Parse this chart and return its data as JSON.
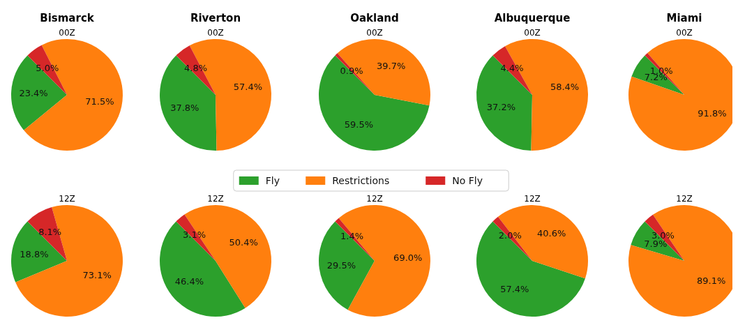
{
  "chart_data": [
    {
      "type": "pie",
      "title": "Bismarck",
      "subtitle": "00Z",
      "categories": [
        null,
        null,
        null
      ],
      "values": [
        23.4,
        71.5,
        5.0
      ],
      "value_labels": [
        "23.4%",
        "71.5%",
        "5.0%"
      ],
      "colors": [
        "#2ca02c",
        "#ff7f0e",
        "#d62728"
      ]
    },
    {
      "type": "pie",
      "title": "Riverton",
      "subtitle": "00Z",
      "categories": [
        null,
        null,
        null
      ],
      "values": [
        37.8,
        57.4,
        4.8
      ],
      "value_labels": [
        "37.8%",
        "57.4%",
        "4.8%"
      ],
      "colors": [
        "#2ca02c",
        "#ff7f0e",
        "#d62728"
      ]
    },
    {
      "type": "pie",
      "title": "Oakland",
      "subtitle": "00Z",
      "categories": [
        "Fly",
        "Restrictions",
        "No Fly"
      ],
      "values": [
        59.5,
        39.7,
        0.9
      ],
      "value_labels": [
        "59.5%",
        "39.7%",
        "0.9%"
      ],
      "colors": [
        "#2ca02c",
        "#ff7f0e",
        "#d62728"
      ],
      "legend": "bottom"
    },
    {
      "type": "pie",
      "title": "Albuquerque",
      "subtitle": "00Z",
      "categories": [
        null,
        null,
        null
      ],
      "values": [
        37.2,
        58.4,
        4.4
      ],
      "value_labels": [
        "37.2%",
        "58.4%",
        "4.4%"
      ],
      "colors": [
        "#2ca02c",
        "#ff7f0e",
        "#d62728"
      ]
    },
    {
      "type": "pie",
      "title": "Miami",
      "subtitle": "00Z",
      "categories": [
        null,
        null,
        null
      ],
      "values": [
        7.2,
        91.8,
        1.0
      ],
      "value_labels": [
        "7.2%",
        "91.8%",
        "1.0%"
      ],
      "colors": [
        "#2ca02c",
        "#ff7f0e",
        "#d62728"
      ]
    },
    {
      "type": "pie",
      "subtitle": "12Z",
      "categories": [
        null,
        null,
        null
      ],
      "values": [
        18.8,
        73.1,
        8.1
      ],
      "value_labels": [
        "18.8%",
        "73.1%",
        "8.1%"
      ],
      "colors": [
        "#2ca02c",
        "#ff7f0e",
        "#d62728"
      ]
    },
    {
      "type": "pie",
      "subtitle": "12Z",
      "categories": [
        null,
        null,
        null
      ],
      "values": [
        46.4,
        50.4,
        3.1
      ],
      "value_labels": [
        "46.4%",
        "50.4%",
        "3.1%"
      ],
      "colors": [
        "#2ca02c",
        "#ff7f0e",
        "#d62728"
      ]
    },
    {
      "type": "pie",
      "subtitle": "12Z",
      "categories": [
        null,
        null,
        null
      ],
      "values": [
        29.5,
        69.0,
        1.4
      ],
      "value_labels": [
        "29.5%",
        "69.0%",
        "1.4%"
      ],
      "colors": [
        "#2ca02c",
        "#ff7f0e",
        "#d62728"
      ]
    },
    {
      "type": "pie",
      "subtitle": "12Z",
      "categories": [
        null,
        null,
        null
      ],
      "values": [
        57.4,
        40.6,
        2.0
      ],
      "value_labels": [
        "57.4%",
        "40.6%",
        "2.0%"
      ],
      "colors": [
        "#2ca02c",
        "#ff7f0e",
        "#d62728"
      ]
    },
    {
      "type": "pie",
      "subtitle": "12Z",
      "categories": [
        null,
        null,
        null
      ],
      "values": [
        7.9,
        89.1,
        3.0
      ],
      "value_labels": [
        "7.9%",
        "89.1%",
        "3.0%"
      ],
      "colors": [
        "#2ca02c",
        "#ff7f0e",
        "#d62728"
      ]
    }
  ]
}
